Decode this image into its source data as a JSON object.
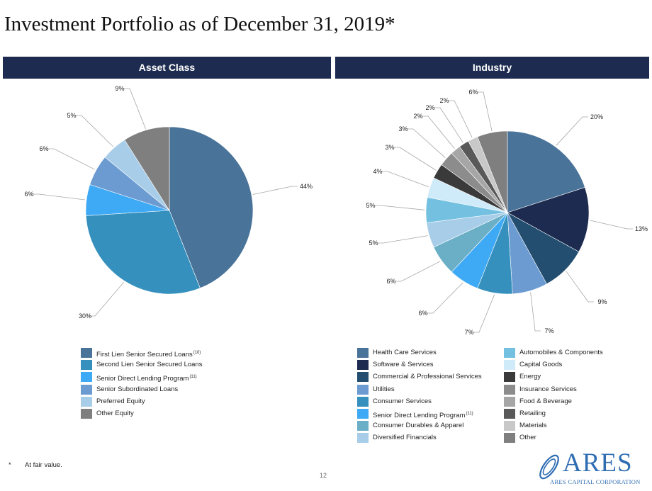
{
  "page": {
    "title": "Investment Portfolio as of December 31, 2019*",
    "footnote_mark": "*",
    "footnote": "At fair value.",
    "page_number": "12"
  },
  "logo": {
    "name": "ARES",
    "subtitle": "ARES CAPITAL CORPORATION",
    "color": "#2f6db3"
  },
  "chart_data": [
    {
      "type": "pie",
      "title": "Asset Class",
      "categories": [
        "First Lien Senior Secured Loans",
        "Second Lien Senior Secured Loans",
        "Senior Direct Lending Program",
        "Senior Subordinated Loans",
        "Preferred Equity",
        "Other Equity"
      ],
      "footnotes": [
        "(10)",
        "",
        "(11)",
        "",
        "",
        ""
      ],
      "values": [
        44,
        30,
        6,
        6,
        5,
        9
      ],
      "labels": [
        "44%",
        "30%",
        "6%",
        "6%",
        "5%",
        "9%"
      ],
      "colors": [
        "#4a7399",
        "#3590bd",
        "#3ea9f5",
        "#6b9bd1",
        "#a7cde9",
        "#7f7f7f"
      ]
    },
    {
      "type": "pie",
      "title": "Industry",
      "categories": [
        "Health Care Services",
        "Software & Services",
        "Commercial & Professional Services",
        "Utilities",
        "Consumer Services",
        "Senior Direct Lending Program",
        "Consumer Durables & Apparel",
        "Diversified Financials",
        "Automobiles & Components",
        "Capital Goods",
        "Energy",
        "Insurance Services",
        "Food & Beverage",
        "Retailing",
        "Materials",
        "Other"
      ],
      "footnotes": [
        "",
        "",
        "",
        "",
        "",
        "(11)",
        "",
        "",
        "",
        "",
        "",
        "",
        "",
        "",
        "",
        ""
      ],
      "values": [
        20,
        13,
        9,
        7,
        7,
        6,
        6,
        5,
        5,
        4,
        3,
        3,
        2,
        2,
        2,
        6
      ],
      "labels": [
        "20%",
        "13%",
        "9%",
        "7%",
        "7%",
        "6%",
        "6%",
        "5%",
        "5%",
        "4%",
        "3%",
        "3%",
        "2%",
        "2%",
        "2%",
        "6%"
      ],
      "colors": [
        "#4a7399",
        "#1d2b50",
        "#234e70",
        "#6b9bd1",
        "#3590bd",
        "#3ea9f5",
        "#6aafc6",
        "#a7cde9",
        "#73c0e0",
        "#cfeaf8",
        "#3a3a3a",
        "#8c8c8c",
        "#a6a6a6",
        "#595959",
        "#c8c8c8",
        "#7f7f7f"
      ]
    }
  ]
}
